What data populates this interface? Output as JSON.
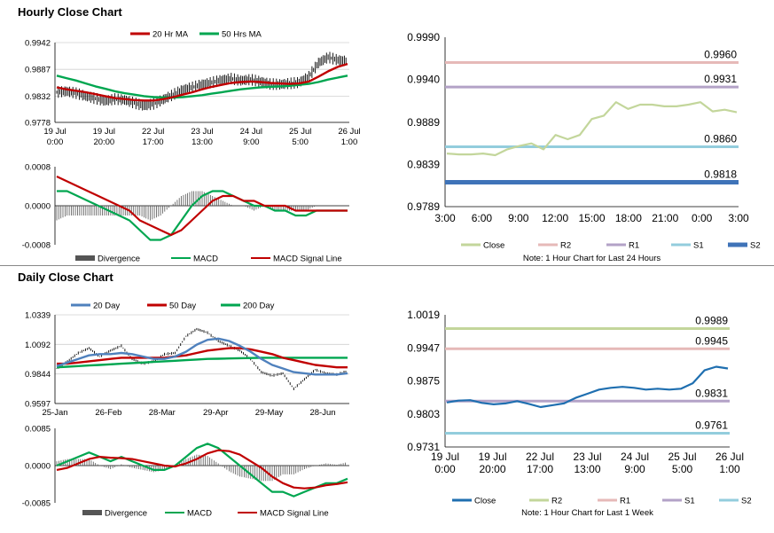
{
  "sections": {
    "hourly": "Hourly Close Chart",
    "daily": "Daily Close Chart"
  },
  "colors": {
    "ma_short": "#c00000",
    "ma_long": "#00a650",
    "ma_200": "#00a650",
    "ma_20d": "#4f81bd",
    "macd": "#00a650",
    "signal": "#c00000",
    "divergence": "#555555",
    "close": "#c3d69b",
    "close_weekly": "#1f6fb0",
    "r2": "#e6b9b8",
    "r1": "#b3a2c7",
    "s1": "#93cddd",
    "s2": "#3f73b8",
    "r2_weekly": "#c3d69b",
    "r1_weekly": "#e6b9b8",
    "s1_weekly": "#b3a2c7",
    "s2_weekly": "#93cddd"
  },
  "chart_data": [
    {
      "id": "hourly_price",
      "type": "line",
      "title": "Hourly Close Chart",
      "legend": [
        "20 Hr MA",
        "50 Hrs MA"
      ],
      "y_ticks": [
        "0.9942",
        "0.9887",
        "0.9832",
        "0.9778"
      ],
      "ylim": [
        0.9778,
        0.9942
      ],
      "x_ticks": [
        [
          "19 Jul",
          "0:00"
        ],
        [
          "19 Jul",
          "20:00"
        ],
        [
          "22 Jul",
          "17:00"
        ],
        [
          "23 Jul",
          "13:00"
        ],
        [
          "24 Jul",
          "9:00"
        ],
        [
          "25 Jul",
          "5:00"
        ],
        [
          "26 Jul",
          "1:00"
        ]
      ],
      "series": [
        {
          "name": "Close",
          "values": [
            0.984,
            0.9842,
            0.9838,
            0.9832,
            0.9827,
            0.9822,
            0.9826,
            0.9824,
            0.9818,
            0.9812,
            0.9816,
            0.9825,
            0.9835,
            0.9845,
            0.985,
            0.9856,
            0.986,
            0.9865,
            0.9868,
            0.9864,
            0.9866,
            0.9862,
            0.9857,
            0.9856,
            0.9858,
            0.986,
            0.9872,
            0.99,
            0.9912,
            0.9906,
            0.9904
          ]
        },
        {
          "name": "20 Hr MA",
          "values": [
            0.985,
            0.9846,
            0.9843,
            0.984,
            0.9836,
            0.9832,
            0.9828,
            0.9826,
            0.9824,
            0.9823,
            0.9823,
            0.9826,
            0.983,
            0.9835,
            0.984,
            0.9846,
            0.9851,
            0.9855,
            0.9859,
            0.9861,
            0.9862,
            0.9861,
            0.9859,
            0.9858,
            0.9857,
            0.9858,
            0.9862,
            0.9872,
            0.9883,
            0.9892,
            0.9898
          ]
        },
        {
          "name": "50 Hrs MA",
          "values": [
            0.9874,
            0.9869,
            0.9864,
            0.9858,
            0.9852,
            0.9847,
            0.9842,
            0.9838,
            0.9835,
            0.9832,
            0.983,
            0.9829,
            0.9829,
            0.983,
            0.9832,
            0.9834,
            0.9837,
            0.984,
            0.9843,
            0.9846,
            0.9848,
            0.985,
            0.9851,
            0.9852,
            0.9853,
            0.9855,
            0.9857,
            0.9861,
            0.9866,
            0.987,
            0.9874
          ]
        }
      ]
    },
    {
      "id": "hourly_macd",
      "type": "line",
      "legend": [
        "Divergence",
        "MACD",
        "MACD Signal Line"
      ],
      "y_ticks": [
        "0.0008",
        "0.0000",
        "-0.0008"
      ],
      "ylim": [
        -0.0008,
        0.0008
      ],
      "series": [
        {
          "name": "MACD",
          "values": [
            0.0003,
            0.0003,
            0.0002,
            0.0001,
            0.0,
            -0.0001,
            -0.0002,
            -0.0003,
            -0.0005,
            -0.0007,
            -0.0007,
            -0.0006,
            -0.0003,
            0.0,
            0.0002,
            0.0003,
            0.0003,
            0.0002,
            0.0001,
            0.0,
            0.0,
            -0.0001,
            -0.0001,
            -0.0002,
            -0.0002,
            -0.0001,
            -0.0001,
            -0.0001,
            -0.0001
          ]
        },
        {
          "name": "MACD Signal Line",
          "values": [
            0.0006,
            0.0005,
            0.0004,
            0.0003,
            0.0002,
            0.0001,
            0.0,
            -0.0001,
            -0.0003,
            -0.0004,
            -0.0005,
            -0.0006,
            -0.0005,
            -0.0003,
            -0.0001,
            0.0001,
            0.0002,
            0.0002,
            0.0001,
            0.0001,
            0.0,
            0.0,
            0.0,
            -0.0001,
            -0.0001,
            -0.0001,
            -0.0001,
            -0.0001,
            -0.0001
          ]
        }
      ]
    },
    {
      "id": "hourly_levels",
      "type": "line",
      "y_ticks": [
        "0.9990",
        "0.9940",
        "0.9889",
        "0.9839",
        "0.9789"
      ],
      "ylim": [
        0.9789,
        0.999
      ],
      "x_ticks": [
        "3:00",
        "6:00",
        "9:00",
        "12:00",
        "15:00",
        "18:00",
        "21:00",
        "0:00",
        "3:00"
      ],
      "legend": [
        "Close",
        "R2",
        "R1",
        "S1",
        "S2"
      ],
      "note": "Note: 1 Hour Chart for Last 24 Hours",
      "levels": [
        {
          "name": "R2",
          "value": 0.996,
          "label": "0.9960"
        },
        {
          "name": "R1",
          "value": 0.9931,
          "label": "0.9931"
        },
        {
          "name": "S1",
          "value": 0.986,
          "label": "0.9860"
        },
        {
          "name": "S2",
          "value": 0.9818,
          "label": "0.9818"
        }
      ],
      "close": [
        0.9852,
        0.9851,
        0.9851,
        0.9852,
        0.985,
        0.9857,
        0.9861,
        0.9864,
        0.9857,
        0.9874,
        0.9869,
        0.9874,
        0.9893,
        0.9897,
        0.9913,
        0.9905,
        0.991,
        0.991,
        0.9908,
        0.9908,
        0.991,
        0.9913,
        0.9902,
        0.9904,
        0.9901
      ]
    },
    {
      "id": "daily_price",
      "type": "line",
      "title": "Daily Close Chart",
      "legend": [
        "20 Day",
        "50 Day",
        "200 Day"
      ],
      "y_ticks": [
        "1.0339",
        "1.0092",
        "0.9844",
        "0.9597"
      ],
      "ylim": [
        0.9597,
        1.0339
      ],
      "x_ticks": [
        "25-Jan",
        "26-Feb",
        "28-Mar",
        "29-Apr",
        "29-May",
        "28-Jun"
      ],
      "series": [
        {
          "name": "Close",
          "values": [
            0.989,
            0.995,
            1.002,
            1.006,
            0.999,
            1.004,
            1.008,
            0.997,
            0.993,
            0.995,
            1.001,
            1.002,
            1.016,
            1.022,
            1.019,
            1.012,
            1.008,
            1.004,
            0.997,
            0.986,
            0.983,
            0.985,
            0.972,
            0.98,
            0.988,
            0.985,
            0.984,
            0.987
          ]
        },
        {
          "name": "20 Day",
          "values": [
            0.991,
            0.994,
            0.997,
            1.0,
            1.001,
            1.001,
            1.002,
            1.001,
            0.999,
            0.997,
            0.997,
            0.999,
            1.003,
            1.009,
            1.013,
            1.014,
            1.012,
            1.008,
            1.003,
            0.997,
            0.992,
            0.989,
            0.986,
            0.985,
            0.984,
            0.984,
            0.984,
            0.985
          ]
        },
        {
          "name": "50 Day",
          "values": [
            0.993,
            0.993,
            0.994,
            0.995,
            0.996,
            0.997,
            0.998,
            0.998,
            0.998,
            0.998,
            0.998,
            0.999,
            1.0,
            1.002,
            1.004,
            1.005,
            1.006,
            1.006,
            1.005,
            1.003,
            1.001,
            0.998,
            0.996,
            0.994,
            0.992,
            0.991,
            0.99,
            0.99
          ]
        },
        {
          "name": "200 Day",
          "values": [
            0.99,
            0.9905,
            0.991,
            0.9915,
            0.992,
            0.9925,
            0.993,
            0.9935,
            0.994,
            0.9945,
            0.995,
            0.9955,
            0.996,
            0.9965,
            0.997,
            0.9972,
            0.9974,
            0.9976,
            0.9978,
            0.998,
            0.998,
            0.998,
            0.998,
            0.998,
            0.998,
            0.998,
            0.998,
            0.998
          ]
        }
      ]
    },
    {
      "id": "daily_macd",
      "type": "line",
      "legend": [
        "Divergence",
        "MACD",
        "MACD Signal Line"
      ],
      "y_ticks": [
        "0.0085",
        "0.0000",
        "-0.0085"
      ],
      "ylim": [
        -0.0085,
        0.0085
      ],
      "series": [
        {
          "name": "MACD",
          "values": [
            0.0,
            0.001,
            0.002,
            0.003,
            0.002,
            0.001,
            0.002,
            0.001,
            0.0,
            -0.001,
            -0.001,
            0.0,
            0.002,
            0.004,
            0.005,
            0.004,
            0.002,
            0.0,
            -0.002,
            -0.004,
            -0.006,
            -0.006,
            -0.007,
            -0.006,
            -0.005,
            -0.004,
            -0.004,
            -0.003
          ]
        },
        {
          "name": "MACD Signal Line",
          "values": [
            -0.001,
            -0.0005,
            0.0005,
            0.0015,
            0.002,
            0.0018,
            0.0017,
            0.0015,
            0.001,
            0.0005,
            0.0,
            -0.0002,
            0.0005,
            0.0015,
            0.0028,
            0.0035,
            0.0033,
            0.0025,
            0.001,
            -0.0005,
            -0.0025,
            -0.004,
            -0.005,
            -0.0052,
            -0.005,
            -0.0045,
            -0.0042,
            -0.0038
          ]
        }
      ]
    },
    {
      "id": "daily_levels",
      "type": "line",
      "y_ticks": [
        "1.0019",
        "0.9947",
        "0.9875",
        "0.9803",
        "0.9731"
      ],
      "ylim": [
        0.9731,
        1.0019
      ],
      "x_ticks": [
        [
          "19 Jul",
          "0:00"
        ],
        [
          "19 Jul",
          "20:00"
        ],
        [
          "22 Jul",
          "17:00"
        ],
        [
          "23 Jul",
          "13:00"
        ],
        [
          "24 Jul",
          "9:00"
        ],
        [
          "25 Jul",
          "5:00"
        ],
        [
          "26 Jul",
          "1:00"
        ]
      ],
      "legend": [
        "Close",
        "R2",
        "R1",
        "S1",
        "S2"
      ],
      "note": "Note: 1 Hour Chart for Last 1 Week",
      "levels": [
        {
          "name": "R2",
          "value": 0.9989,
          "label": "0.9989"
        },
        {
          "name": "R1",
          "value": 0.9945,
          "label": "0.9945"
        },
        {
          "name": "S1",
          "value": 0.9831,
          "label": "0.9831"
        },
        {
          "name": "S2",
          "value": 0.9761,
          "label": "0.9761"
        }
      ],
      "close": [
        0.9828,
        0.9832,
        0.9833,
        0.9827,
        0.9824,
        0.9826,
        0.9831,
        0.9825,
        0.9818,
        0.9822,
        0.9826,
        0.9838,
        0.9847,
        0.9856,
        0.986,
        0.9862,
        0.986,
        0.9856,
        0.9858,
        0.9856,
        0.9858,
        0.987,
        0.9898,
        0.9906,
        0.9902
      ]
    }
  ]
}
